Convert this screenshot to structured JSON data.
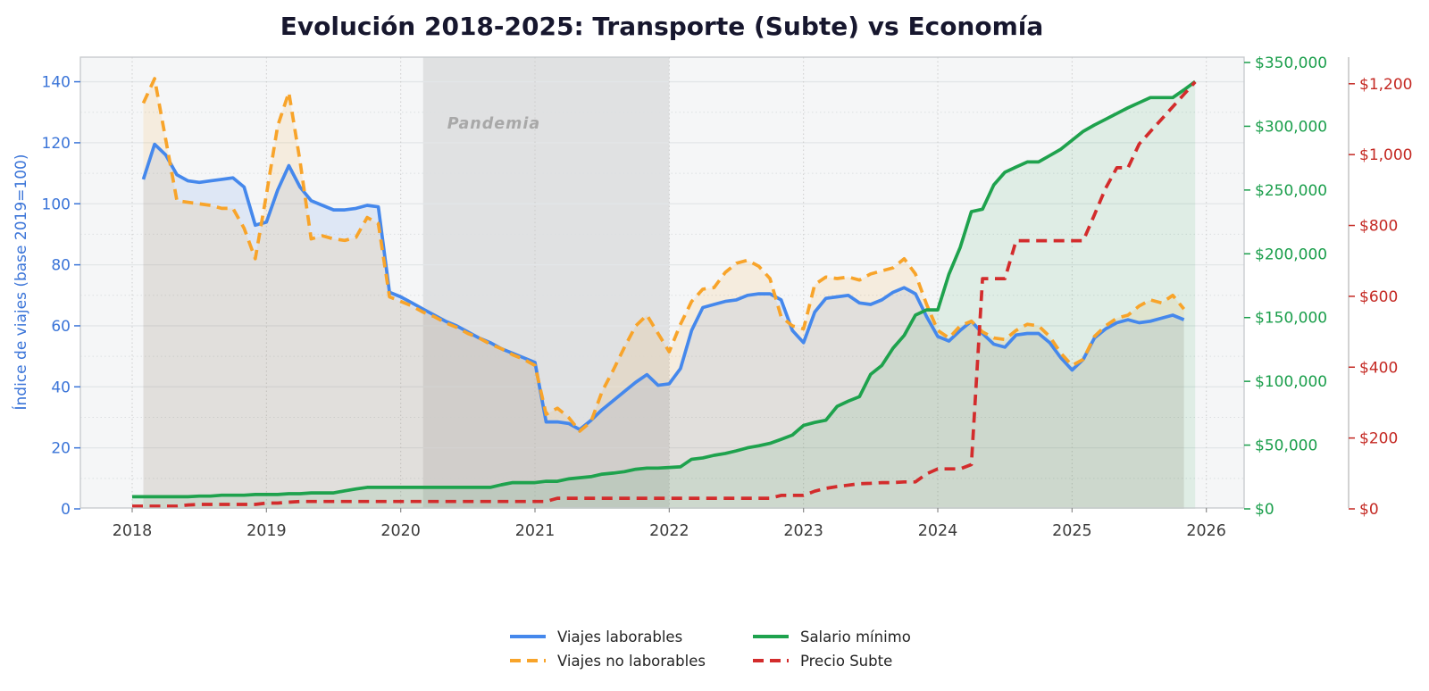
{
  "chart_data": {
    "type": "line",
    "title": "Evolución 2018-2025: Transporte (Subte) vs Economía",
    "x_axis": {
      "tick_labels": [
        "2018",
        "2019",
        "2020",
        "2021",
        "2022",
        "2023",
        "2024",
        "2025",
        "2026"
      ],
      "start_year": 2018
    },
    "y_left": {
      "label": "Índice de viajes (base 2019=100)",
      "ticks": [
        0,
        20,
        40,
        60,
        80,
        100,
        120,
        140
      ],
      "range": [
        0,
        148
      ],
      "color": "#3a74d8"
    },
    "y_right_salario": {
      "ticks": [
        0,
        50000,
        100000,
        150000,
        200000,
        250000,
        300000,
        350000
      ],
      "tick_prefix": "$",
      "range": [
        0,
        354500
      ],
      "color": "#1a9e4b"
    },
    "y_right_subte": {
      "ticks": [
        0,
        200,
        400,
        600,
        800,
        1000,
        1200
      ],
      "tick_prefix": "$",
      "range": [
        0,
        1277
      ],
      "color": "#c42822"
    },
    "pandemia_band": {
      "label": "Pandemia",
      "start_month": "2020-03",
      "end_month": "2022-01"
    },
    "legend": {
      "position": "bottom-center",
      "columns": 2
    },
    "series": [
      {
        "name": "Viajes laborables",
        "axis": "left",
        "style": "solid",
        "color": "#4588ec",
        "fill_color": "rgba(70,130,235,0.13)",
        "start_month": "2018-02",
        "values": [
          108,
          119.5,
          116,
          109.5,
          107.5,
          107,
          107.5,
          108,
          108.5,
          105.5,
          93,
          94,
          104.5,
          112.5,
          105.5,
          101,
          99.5,
          98,
          98,
          98.5,
          99.5,
          99,
          71,
          69.5,
          67.5,
          65.5,
          63.5,
          61.5,
          60,
          58,
          56,
          54.5,
          52.5,
          51,
          49.5,
          48,
          28.5,
          28.5,
          28,
          26,
          29,
          32.5,
          35.5,
          38.5,
          41.5,
          44,
          40.5,
          41,
          46,
          58.5,
          66,
          67,
          68,
          68.5,
          70,
          70.5,
          70.5,
          68.5,
          58.5,
          54.5,
          64.5,
          69,
          69.5,
          70,
          67.5,
          67,
          68.5,
          71,
          72.5,
          70.5,
          63,
          56.5,
          55,
          58.5,
          61.5,
          57.5,
          54,
          53,
          57,
          57.5,
          57.5,
          54.5,
          49.5,
          45.5,
          49,
          56,
          59,
          61,
          62,
          61,
          61.5,
          62.5,
          63.5,
          62
        ]
      },
      {
        "name": "Viajes no laborables",
        "axis": "left",
        "style": "dashed",
        "color": "#f8a42a",
        "fill_color": "rgba(246,164,40,0.12)",
        "start_month": "2018-02",
        "values": [
          133,
          141,
          121,
          101,
          100.5,
          100,
          99.5,
          98.5,
          98.5,
          92,
          82,
          103,
          125.5,
          136.5,
          114,
          88.5,
          89.5,
          88.5,
          88,
          89,
          95.5,
          93.5,
          69.5,
          68,
          66.5,
          64.5,
          63,
          61,
          59.5,
          57.5,
          56,
          54,
          52.5,
          50.5,
          49,
          47,
          31,
          33,
          30,
          25.5,
          28.5,
          38.5,
          45.5,
          53,
          60,
          63.5,
          57.5,
          51.5,
          60.5,
          68,
          72,
          72.5,
          77.5,
          80.5,
          81.5,
          79.5,
          75.5,
          63,
          60,
          59,
          73.5,
          76,
          75.5,
          76,
          75,
          77,
          78,
          79,
          82,
          77,
          67,
          58.5,
          56,
          60,
          61.5,
          58,
          56,
          55.5,
          58.5,
          60.5,
          60,
          56.5,
          51,
          47,
          49,
          56.5,
          60,
          62.5,
          63.5,
          66.5,
          68.5,
          67.5,
          70,
          65.5
        ]
      },
      {
        "name": "Salario mínimo",
        "axis": "salario",
        "style": "solid",
        "color": "#1ea24d",
        "fill_color": "rgba(34,158,80,0.10)",
        "start_month": "2018-01",
        "values": [
          9500,
          9500,
          9500,
          9500,
          9500,
          9500,
          10000,
          10000,
          10700,
          10700,
          10700,
          11300,
          11300,
          11300,
          11900,
          11900,
          12500,
          12500,
          12500,
          14125,
          15625,
          16875,
          16875,
          16875,
          16875,
          16875,
          16875,
          16875,
          16875,
          16875,
          16875,
          16875,
          16875,
          18900,
          20587,
          20587,
          20587,
          21600,
          21600,
          23544,
          24408,
          25272,
          27216,
          28080,
          29160,
          31104,
          32000,
          32000,
          32500,
          33000,
          38940,
          40000,
          42000,
          43500,
          45500,
          47850,
          49500,
          51400,
          54550,
          57900,
          65427,
          67743,
          69500,
          80342,
          84512,
          87987,
          105500,
          112500,
          126000,
          136000,
          152000,
          156000,
          156000,
          184000,
          205000,
          233000,
          235000,
          254000,
          264000,
          268000,
          272000,
          272000,
          277000,
          282000,
          289000,
          296000,
          301000,
          305500,
          310000,
          314500,
          318500,
          322500,
          322500,
          322500,
          328500,
          335000
        ]
      },
      {
        "name": "Precio Subte",
        "axis": "subte",
        "style": "dashed",
        "color": "#d32c2c",
        "fill_color": null,
        "start_month": "2018-01",
        "values": [
          7.5,
          7.5,
          7.5,
          7.5,
          7.5,
          11,
          12.5,
          12.5,
          12.5,
          12.5,
          12.5,
          12.5,
          16.5,
          16.5,
          19,
          21,
          21,
          21,
          21,
          21,
          21,
          21,
          21,
          21,
          21,
          21,
          21,
          21,
          21,
          21,
          21,
          21,
          21,
          21,
          21,
          21,
          21,
          21,
          30,
          30,
          30,
          30,
          30,
          30,
          30,
          30,
          30,
          30,
          30,
          30,
          30,
          30,
          30,
          30,
          30,
          30,
          30,
          30,
          38,
          38,
          38,
          50,
          58,
          63,
          67,
          71,
          72,
          74,
          74,
          76,
          76,
          99,
          113,
          113,
          113,
          125,
          650,
          650,
          650,
          757,
          757,
          757,
          757,
          757,
          757,
          757,
          830,
          905,
          963,
          963,
          1030,
          1065,
          1100,
          1135,
          1170,
          1205
        ]
      }
    ]
  }
}
